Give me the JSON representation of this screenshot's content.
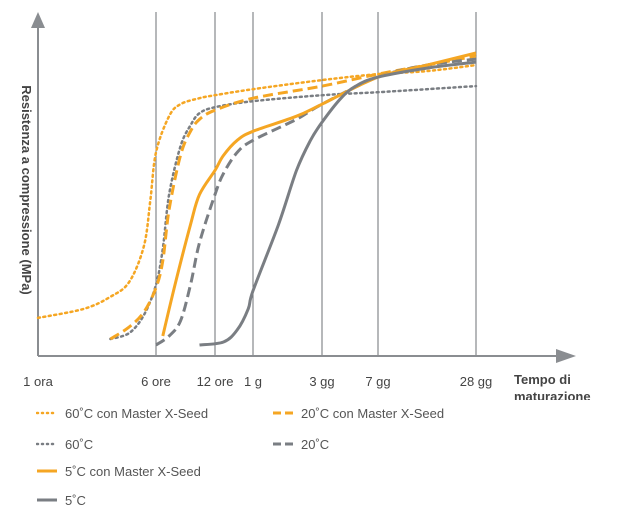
{
  "chart_data": {
    "type": "line",
    "title": "",
    "xlabel": "Tempo di maturazione",
    "ylabel": "Resistenza a compressione (MPa)",
    "x_ticks": [
      "1 ora",
      "6 ore",
      "12 ore",
      "1 g",
      "3 gg",
      "7 gg",
      "28 gg"
    ],
    "x_tick_values_hours": [
      1,
      6,
      12,
      24,
      72,
      168,
      672
    ],
    "y_scale": "unlabeled",
    "ylim": [
      0,
      100
    ],
    "grid": "vertical lines at ticks",
    "legend_position": "bottom",
    "series": [
      {
        "name": "60˚C con Master X-Seed",
        "color": "#f5a623",
        "style": "dotted",
        "width": 2.5,
        "x": [
          1,
          2,
          3,
          4,
          5,
          5.5,
          6,
          7,
          8,
          10,
          12,
          24,
          72,
          168,
          336,
          672
        ],
        "y": [
          9,
          12,
          16,
          21,
          33,
          48,
          64,
          76,
          80,
          82,
          83,
          85,
          88,
          90,
          91,
          93
        ]
      },
      {
        "name": "60˚C",
        "color": "#7a7e83",
        "style": "dotted",
        "width": 2.5,
        "x": [
          3,
          4,
          5,
          6,
          6.5,
          7,
          8,
          9,
          10,
          12,
          24,
          72,
          168,
          336,
          672
        ],
        "y": [
          2,
          4,
          10,
          20,
          32,
          50,
          66,
          73,
          77,
          79,
          81,
          83,
          84,
          85,
          86
        ]
      },
      {
        "name": "20˚C con Master X-Seed",
        "color": "#f5a623",
        "style": "dashed",
        "width": 3,
        "x": [
          3,
          4,
          5,
          6,
          6.5,
          7,
          8,
          9,
          10,
          12,
          24,
          72,
          168,
          336,
          672
        ],
        "y": [
          2,
          6,
          11,
          19,
          28,
          45,
          63,
          71,
          75,
          78,
          82,
          86,
          90,
          93,
          96
        ]
      },
      {
        "name": "20˚C",
        "color": "#7a7e83",
        "style": "dashed",
        "width": 3,
        "x": [
          6,
          7,
          8,
          9,
          10,
          12,
          14,
          18,
          24,
          48,
          72,
          168,
          336,
          672
        ],
        "y": [
          0,
          3,
          8,
          20,
          34,
          50,
          57,
          64,
          68,
          75,
          80,
          89,
          93,
          95
        ]
      },
      {
        "name": "5˚C con Master X-Seed",
        "color": "#f5a623",
        "style": "solid",
        "width": 3,
        "x": [
          6.5,
          7.5,
          9,
          10,
          12,
          14,
          18,
          24,
          48,
          72,
          168,
          336,
          672
        ],
        "y": [
          3,
          20,
          40,
          50,
          58,
          63,
          68,
          71,
          76,
          80,
          89,
          93,
          97
        ]
      },
      {
        "name": "5˚C",
        "color": "#7a7e83",
        "style": "solid",
        "width": 3,
        "x": [
          10,
          14,
          18,
          22,
          24,
          36,
          48,
          60,
          72,
          96,
          120,
          168,
          336,
          672
        ],
        "y": [
          0,
          1,
          5,
          12,
          18,
          40,
          58,
          68,
          74,
          82,
          86,
          89,
          92,
          94
        ]
      }
    ]
  },
  "legend": [
    {
      "label": "60˚C con Master X-Seed",
      "color": "#f5a623",
      "style": "dotted"
    },
    {
      "label": "20˚C con Master X-Seed",
      "color": "#f5a623",
      "style": "dashed"
    },
    {
      "label": "60˚C",
      "color": "#7a7e83",
      "style": "dotted"
    },
    {
      "label": "20˚C",
      "color": "#7a7e83",
      "style": "dashed"
    },
    {
      "label": "5˚C con Master X-Seed",
      "color": "#f5a623",
      "style": "solid"
    },
    {
      "label": "5˚C",
      "color": "#7a7e83",
      "style": "solid"
    }
  ],
  "axis_color": "#8a8d91",
  "gridline_color": "#6d7075"
}
